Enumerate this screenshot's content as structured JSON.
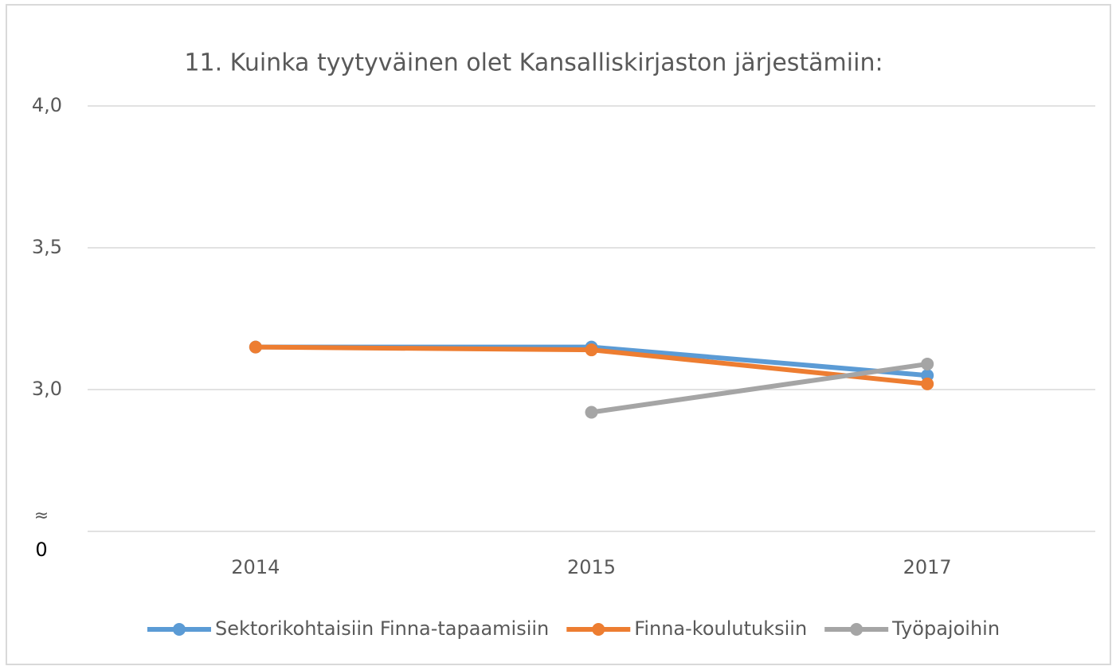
{
  "chart_data": {
    "type": "line",
    "title": "11. Kuinka tyytyväinen olet Kansalliskirjaston järjestämiin:",
    "categories": [
      "2014",
      "2015",
      "2017"
    ],
    "series": [
      {
        "name": "Sektorikohtaisiin Finna-tapaamisiin",
        "color": "#5b9bd5",
        "values": [
          3.15,
          3.15,
          3.05
        ]
      },
      {
        "name": "Finna-koulutuksiin",
        "color": "#ed7d31",
        "values": [
          3.15,
          3.14,
          3.02
        ]
      },
      {
        "name": "Työpajoihin",
        "color": "#a5a5a5",
        "values": [
          null,
          2.92,
          3.09
        ]
      }
    ],
    "ylim": [
      2.5,
      4.0
    ],
    "yticks": [
      {
        "value": 3.0,
        "label": "3,0"
      },
      {
        "value": 3.5,
        "label": "3,5"
      },
      {
        "value": 4.0,
        "label": "4,0"
      }
    ],
    "axis_break_symbol": "≈",
    "axis_break_label": "0",
    "grid": true,
    "legend": "bottom"
  }
}
